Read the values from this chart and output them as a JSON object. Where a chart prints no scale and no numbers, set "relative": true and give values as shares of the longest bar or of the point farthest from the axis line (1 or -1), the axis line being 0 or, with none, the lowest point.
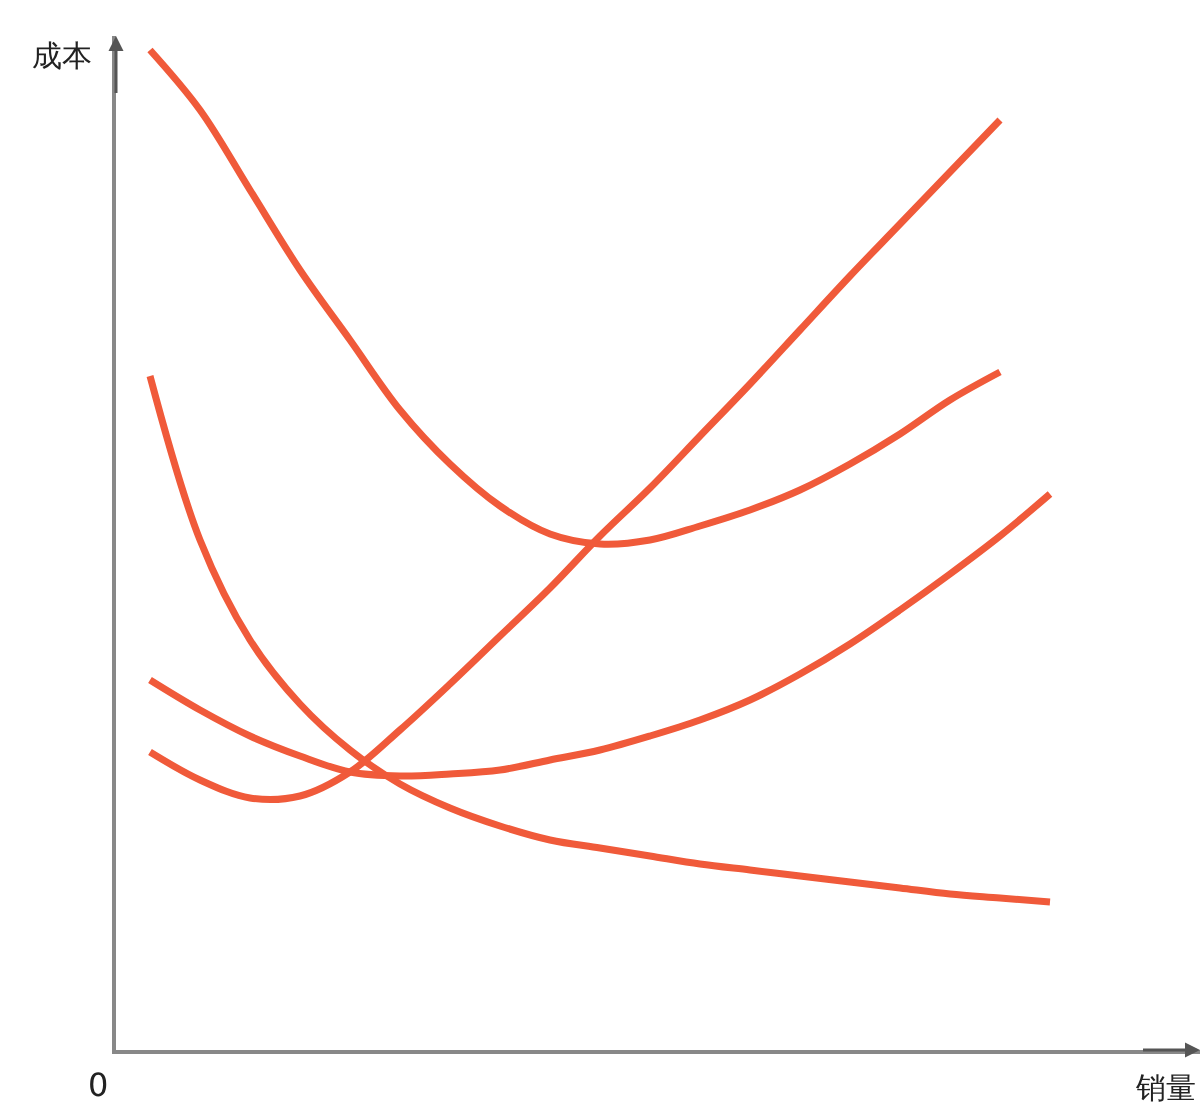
{
  "chart_data": {
    "type": "line",
    "relative": true,
    "xlabel": "销量",
    "ylabel": "成本",
    "annotations": [
      "0"
    ],
    "line_style": "solid",
    "marker": "none",
    "categories": [
      null,
      null,
      null,
      null,
      null,
      null,
      null,
      null,
      null,
      null,
      null,
      null,
      null,
      null,
      null,
      null,
      null,
      null,
      null
    ],
    "series": [
      {
        "color": "#f05a3a",
        "values": [
          1.0,
          0.94,
          0.86,
          0.78,
          0.71,
          0.64,
          0.586,
          0.544,
          0.516,
          0.506,
          0.51,
          0.524,
          0.54,
          0.56,
          0.586,
          0.616,
          0.65,
          0.678,
          null
        ]
      },
      {
        "color": "#f05a3a",
        "values": [
          0.298,
          0.27,
          0.252,
          0.254,
          0.278,
          0.32,
          0.366,
          0.414,
          0.462,
          0.514,
          0.562,
          0.614,
          0.666,
          0.72,
          0.774,
          0.826,
          0.878,
          0.93,
          null
        ]
      },
      {
        "color": "#f05a3a",
        "values": [
          0.37,
          0.34,
          0.314,
          0.294,
          0.278,
          0.274,
          0.276,
          0.28,
          0.29,
          0.3,
          0.314,
          0.33,
          0.35,
          0.376,
          0.406,
          0.44,
          0.476,
          0.514,
          0.556
        ]
      },
      {
        "color": "#f05a3a",
        "values": [
          0.674,
          0.51,
          0.41,
          0.346,
          0.3,
          0.266,
          0.242,
          0.224,
          0.21,
          0.202,
          0.194,
          0.186,
          0.18,
          0.174,
          0.168,
          0.162,
          0.156,
          0.152,
          0.148
        ]
      }
    ]
  }
}
